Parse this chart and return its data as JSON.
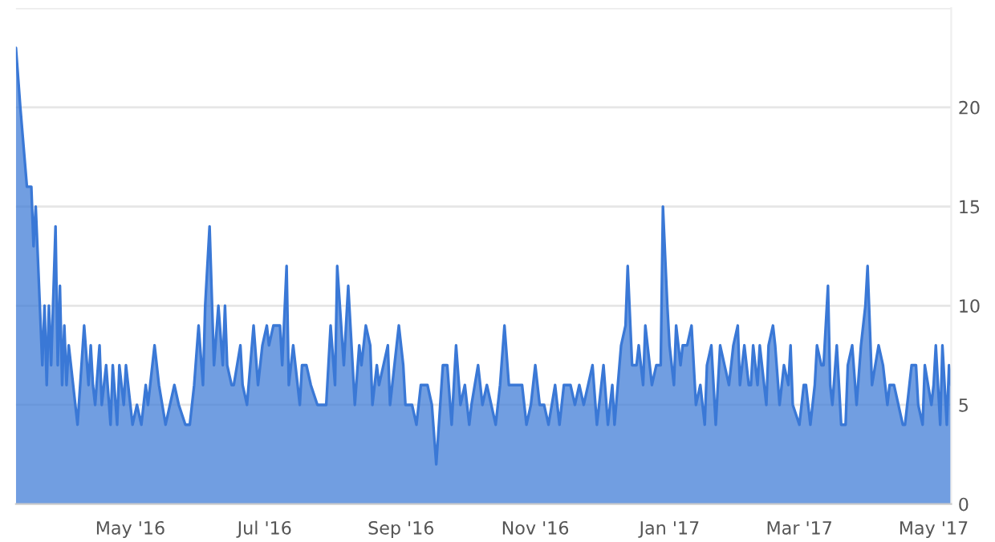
{
  "chart_data": {
    "type": "area",
    "x": [
      "2016-03-10",
      "2016-03-12",
      "2016-03-15",
      "2016-03-17",
      "2016-03-18",
      "2016-03-19",
      "2016-03-22",
      "2016-03-23",
      "2016-03-24",
      "2016-03-25",
      "2016-03-26",
      "2016-03-28",
      "2016-03-29",
      "2016-03-30",
      "2016-03-31",
      "2016-04-01",
      "2016-04-02",
      "2016-04-03",
      "2016-04-04",
      "2016-04-07",
      "2016-04-10",
      "2016-04-12",
      "2016-04-13",
      "2016-04-14",
      "2016-04-15",
      "2016-04-17",
      "2016-04-18",
      "2016-04-20",
      "2016-04-22",
      "2016-04-23",
      "2016-04-25",
      "2016-04-26",
      "2016-04-28",
      "2016-04-29",
      "2016-05-01",
      "2016-05-02",
      "2016-05-04",
      "2016-05-06",
      "2016-05-08",
      "2016-05-09",
      "2016-05-12",
      "2016-05-14",
      "2016-05-17",
      "2016-05-19",
      "2016-05-21",
      "2016-05-23",
      "2016-05-26",
      "2016-05-28",
      "2016-05-30",
      "2016-06-01",
      "2016-06-03",
      "2016-06-04",
      "2016-06-06",
      "2016-06-08",
      "2016-06-10",
      "2016-06-12",
      "2016-06-13",
      "2016-06-14",
      "2016-06-16",
      "2016-06-17",
      "2016-06-20",
      "2016-06-21",
      "2016-06-23",
      "2016-06-26",
      "2016-06-28",
      "2016-06-30",
      "2016-07-02",
      "2016-07-03",
      "2016-07-05",
      "2016-07-08",
      "2016-07-09",
      "2016-07-11",
      "2016-07-12",
      "2016-07-14",
      "2016-07-16",
      "2016-07-17",
      "2016-07-18",
      "2016-07-20",
      "2016-07-22",
      "2016-07-25",
      "2016-07-29",
      "2016-07-31",
      "2016-08-02",
      "2016-08-03",
      "2016-08-06",
      "2016-08-08",
      "2016-08-11",
      "2016-08-13",
      "2016-08-14",
      "2016-08-16",
      "2016-08-18",
      "2016-08-19",
      "2016-08-21",
      "2016-08-22",
      "2016-08-24",
      "2016-08-26",
      "2016-08-27",
      "2016-08-29",
      "2016-08-31",
      "2016-09-02",
      "2016-09-03",
      "2016-09-06",
      "2016-09-08",
      "2016-09-10",
      "2016-09-13",
      "2016-09-15",
      "2016-09-17",
      "2016-09-20",
      "2016-09-22",
      "2016-09-24",
      "2016-09-26",
      "2016-09-28",
      "2016-09-30",
      "2016-10-02",
      "2016-10-03",
      "2016-10-06",
      "2016-10-08",
      "2016-10-10",
      "2016-10-12",
      "2016-10-14",
      "2016-10-16",
      "2016-10-18",
      "2016-10-20",
      "2016-10-23",
      "2016-10-26",
      "2016-10-28",
      "2016-10-30",
      "2016-11-01",
      "2016-11-03",
      "2016-11-05",
      "2016-11-07",
      "2016-11-10",
      "2016-11-12",
      "2016-11-14",
      "2016-11-17",
      "2016-11-19",
      "2016-11-21",
      "2016-11-23",
      "2016-11-27",
      "2016-11-29",
      "2016-12-02",
      "2016-12-04",
      "2016-12-06",
      "2016-12-07",
      "2016-12-10",
      "2016-12-12",
      "2016-12-13",
      "2016-12-15",
      "2016-12-17",
      "2016-12-18",
      "2016-12-20",
      "2016-12-21",
      "2016-12-23",
      "2016-12-24",
      "2016-12-26",
      "2016-12-28",
      "2016-12-29",
      "2016-12-31",
      "2017-01-01",
      "2017-01-03",
      "2017-01-04",
      "2017-01-06",
      "2017-01-07",
      "2017-01-09",
      "2017-01-11",
      "2017-01-13",
      "2017-01-15",
      "2017-01-17",
      "2017-01-18",
      "2017-01-20",
      "2017-01-22",
      "2017-01-24",
      "2017-01-26",
      "2017-01-28",
      "2017-01-30",
      "2017-02-01",
      "2017-02-02",
      "2017-02-04",
      "2017-02-06",
      "2017-02-07",
      "2017-02-08",
      "2017-02-10",
      "2017-02-11",
      "2017-02-14",
      "2017-02-15",
      "2017-02-17",
      "2017-02-18",
      "2017-02-20",
      "2017-02-22",
      "2017-02-24",
      "2017-02-25",
      "2017-02-26",
      "2017-03-01",
      "2017-03-03",
      "2017-03-04",
      "2017-03-06",
      "2017-03-08",
      "2017-03-09",
      "2017-03-11",
      "2017-03-12",
      "2017-03-14",
      "2017-03-15",
      "2017-03-16",
      "2017-03-18",
      "2017-03-20",
      "2017-03-22",
      "2017-03-23",
      "2017-03-25",
      "2017-03-27",
      "2017-03-29",
      "2017-03-31",
      "2017-04-01",
      "2017-04-03",
      "2017-04-06",
      "2017-04-08",
      "2017-04-10",
      "2017-04-11",
      "2017-04-13",
      "2017-04-15",
      "2017-04-17",
      "2017-04-18",
      "2017-04-20",
      "2017-04-21",
      "2017-04-23",
      "2017-04-24",
      "2017-04-26",
      "2017-04-27",
      "2017-04-30",
      "2017-05-01",
      "2017-05-02",
      "2017-05-04",
      "2017-05-05",
      "2017-05-07",
      "2017-05-08",
      "2017-05-09"
    ],
    "series": [
      {
        "color": "#3a78d6",
        "values": [
          23,
          20,
          16,
          16,
          13,
          15,
          7,
          10,
          6,
          10,
          7,
          14,
          7,
          11,
          6,
          9,
          6,
          8,
          7,
          4,
          9,
          6,
          8,
          6,
          5,
          8,
          5,
          7,
          4,
          7,
          4,
          7,
          5,
          7,
          5,
          4,
          5,
          4,
          6,
          5,
          8,
          6,
          4,
          5,
          6,
          5,
          4,
          4,
          6,
          9,
          6,
          10,
          14,
          7,
          10,
          7,
          10,
          7,
          6,
          6,
          8,
          6,
          5,
          9,
          6,
          8,
          9,
          8,
          9,
          9,
          7,
          12,
          6,
          8,
          6,
          5,
          7,
          7,
          6,
          5,
          5,
          9,
          6,
          12,
          7,
          11,
          5,
          8,
          7,
          9,
          8,
          5,
          7,
          6,
          7,
          8,
          5,
          7,
          9,
          7,
          5,
          5,
          4,
          6,
          6,
          5,
          2,
          7,
          7,
          4,
          8,
          5,
          6,
          4,
          5,
          7,
          5,
          6,
          5,
          4,
          6,
          9,
          6,
          6,
          6,
          4,
          5,
          7,
          5,
          5,
          4,
          6,
          4,
          6,
          6,
          5,
          6,
          5,
          7,
          4,
          7,
          4,
          6,
          4,
          8,
          9,
          12,
          7,
          7,
          8,
          6,
          9,
          7,
          6,
          7,
          7,
          15,
          10,
          8,
          6,
          9,
          7,
          8,
          8,
          9,
          5,
          6,
          4,
          7,
          8,
          4,
          8,
          7,
          6,
          8,
          9,
          6,
          8,
          6,
          6,
          8,
          6,
          8,
          5,
          8,
          9,
          8,
          5,
          7,
          6,
          8,
          5,
          4,
          6,
          6,
          4,
          6,
          8,
          7,
          7,
          11,
          6,
          5,
          8,
          4,
          4,
          7,
          8,
          5,
          8,
          10,
          12,
          6,
          8,
          7,
          5,
          6,
          6,
          5,
          4,
          4,
          6,
          7,
          7,
          5,
          4,
          7,
          5,
          6,
          8,
          4,
          8,
          4,
          7,
          6
        ]
      }
    ],
    "xlim": [
      "2016-03-10",
      "2017-05-09"
    ],
    "xticks": [
      {
        "value": "2016-05-01",
        "label": "May '16"
      },
      {
        "value": "2016-07-01",
        "label": "Jul '16"
      },
      {
        "value": "2016-09-01",
        "label": "Sep '16"
      },
      {
        "value": "2016-11-01",
        "label": "Nov '16"
      },
      {
        "value": "2017-01-01",
        "label": "Jan '17"
      },
      {
        "value": "2017-03-01",
        "label": "Mar '17"
      },
      {
        "value": "2017-05-01",
        "label": "May '17"
      }
    ],
    "ylim": [
      0,
      25
    ],
    "yticks": [
      0,
      5,
      10,
      15,
      20,
      {
        "value": 25,
        "label": null
      }
    ],
    "grid": "y"
  }
}
